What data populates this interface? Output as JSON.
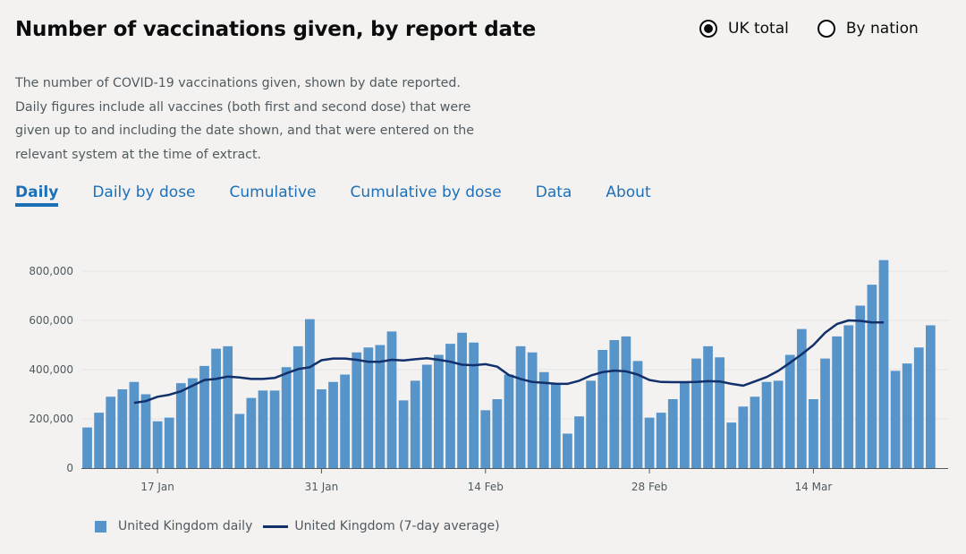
{
  "title": "Number of vaccinations given, by report date",
  "radios": [
    {
      "label": "UK total",
      "checked": true
    },
    {
      "label": "By nation",
      "checked": false
    }
  ],
  "description": "The number of COVID-19 vaccinations given, shown by date reported. Daily figures include all vaccines (both first and second dose) that were given up to and including the date shown, and that were entered on the relevant system at the time of extract.",
  "tabs": [
    {
      "label": "Daily",
      "active": true
    },
    {
      "label": "Daily by dose",
      "active": false
    },
    {
      "label": "Cumulative",
      "active": false
    },
    {
      "label": "Cumulative by dose",
      "active": false
    },
    {
      "label": "Data",
      "active": false
    },
    {
      "label": "About",
      "active": false
    }
  ],
  "colors": {
    "bar": "#5694ca",
    "line": "#12306b",
    "link": "#1d70b8"
  },
  "legend": {
    "bars": "United Kingdom daily",
    "line": "United Kingdom (7-day average)"
  },
  "chart_data": {
    "type": "bar",
    "title": "",
    "xlabel": "",
    "ylabel": "",
    "ylim": [
      0,
      850000
    ],
    "y_ticks": [
      0,
      200000,
      400000,
      600000,
      800000
    ],
    "y_tick_labels": [
      "0",
      "200,000",
      "400,000",
      "600,000",
      "800,000"
    ],
    "grid": true,
    "x": [
      "2021-01-11",
      "2021-01-12",
      "2021-01-13",
      "2021-01-14",
      "2021-01-15",
      "2021-01-16",
      "2021-01-17",
      "2021-01-18",
      "2021-01-19",
      "2021-01-20",
      "2021-01-21",
      "2021-01-22",
      "2021-01-23",
      "2021-01-24",
      "2021-01-25",
      "2021-01-26",
      "2021-01-27",
      "2021-01-28",
      "2021-01-29",
      "2021-01-30",
      "2021-01-31",
      "2021-02-01",
      "2021-02-02",
      "2021-02-03",
      "2021-02-04",
      "2021-02-05",
      "2021-02-06",
      "2021-02-07",
      "2021-02-08",
      "2021-02-09",
      "2021-02-10",
      "2021-02-11",
      "2021-02-12",
      "2021-02-13",
      "2021-02-14",
      "2021-02-15",
      "2021-02-16",
      "2021-02-17",
      "2021-02-18",
      "2021-02-19",
      "2021-02-20",
      "2021-02-21",
      "2021-02-22",
      "2021-02-23",
      "2021-02-24",
      "2021-02-25",
      "2021-02-26",
      "2021-02-27",
      "2021-02-28",
      "2021-03-01",
      "2021-03-02",
      "2021-03-03",
      "2021-03-04",
      "2021-03-05",
      "2021-03-06",
      "2021-03-07",
      "2021-03-08",
      "2021-03-09",
      "2021-03-10",
      "2021-03-11",
      "2021-03-12",
      "2021-03-13",
      "2021-03-14",
      "2021-03-15",
      "2021-03-16",
      "2021-03-17",
      "2021-03-18",
      "2021-03-19",
      "2021-03-20",
      "2021-03-21",
      "2021-03-22",
      "2021-03-23",
      "2021-03-24",
      "2021-03-25"
    ],
    "x_ticks": [
      "2021-01-17",
      "2021-01-31",
      "2021-02-14",
      "2021-02-28",
      "2021-03-14"
    ],
    "x_tick_labels": [
      "17 Jan",
      "31 Jan",
      "14 Feb",
      "28 Feb",
      "14 Mar"
    ],
    "series": [
      {
        "name": "United Kingdom daily",
        "type": "bar",
        "values": [
          165000,
          225000,
          290000,
          320000,
          350000,
          300000,
          190000,
          205000,
          345000,
          365000,
          415000,
          485000,
          495000,
          220000,
          285000,
          315000,
          315000,
          410000,
          495000,
          605000,
          320000,
          350000,
          380000,
          470000,
          490000,
          500000,
          555000,
          275000,
          355000,
          420000,
          460000,
          505000,
          550000,
          510000,
          235000,
          280000,
          380000,
          495000,
          470000,
          390000,
          345000,
          140000,
          210000,
          355000,
          480000,
          520000,
          535000,
          435000,
          205000,
          225000,
          280000,
          350000,
          445000,
          495000,
          450000,
          185000,
          250000,
          290000,
          350000,
          355000,
          460000,
          565000,
          280000,
          445000,
          535000,
          580000,
          660000,
          745000,
          845000,
          395000,
          425000,
          490000,
          580000,
          null
        ]
      },
      {
        "name": "United Kingdom (7-day average)",
        "type": "line",
        "values": [
          null,
          null,
          null,
          null,
          265000,
          272000,
          290000,
          298000,
          312000,
          335000,
          358000,
          362000,
          372000,
          368000,
          362000,
          362000,
          366000,
          385000,
          402000,
          410000,
          438000,
          445000,
          445000,
          440000,
          432000,
          432000,
          440000,
          437000,
          442000,
          446000,
          440000,
          432000,
          420000,
          418000,
          422000,
          412000,
          378000,
          362000,
          350000,
          346000,
          343000,
          342000,
          355000,
          376000,
          390000,
          396000,
          393000,
          380000,
          358000,
          350000,
          349000,
          349000,
          350000,
          353000,
          352000,
          342000,
          335000,
          352000,
          370000,
          395000,
          428000,
          462000,
          500000,
          550000,
          585000,
          600000,
          598000,
          592000,
          592000,
          null,
          null,
          null,
          null,
          null
        ]
      }
    ],
    "legend_position": "bottom-left"
  }
}
